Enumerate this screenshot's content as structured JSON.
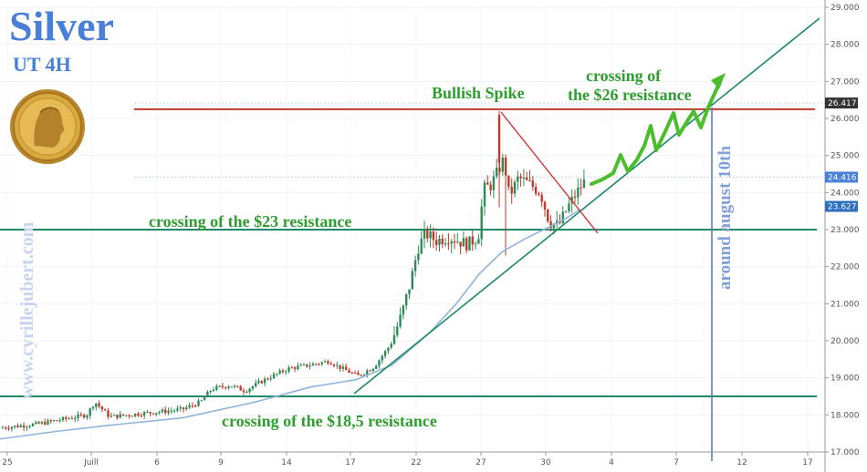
{
  "title": "Silver",
  "subtitle": "UT  4H",
  "watermark": "www.cyrillejubert.com",
  "chart_data": {
    "type": "candlestick",
    "y_ticks": [
      "17.000",
      "18.000",
      "19.000",
      "20.000",
      "21.000",
      "22.000",
      "23.000",
      "24.000",
      "25.000",
      "26.000",
      "27.000",
      "28.000",
      "29.000"
    ],
    "x_ticks": [
      "25",
      "Juill",
      "6",
      "9",
      "14",
      "17",
      "22",
      "27",
      "30",
      "4",
      "7",
      "12",
      "17"
    ],
    "ylim": [
      17,
      29
    ],
    "price_tags": [
      {
        "label": "26.417",
        "value": 26.417,
        "bg": "#333333",
        "fg": "#ffffff"
      },
      {
        "label": "24.416",
        "value": 24.416,
        "bg": "#4a7fd8",
        "fg": "#ffffff"
      },
      {
        "label": "23.627",
        "value": 23.627,
        "bg": "#2e6fc0",
        "fg": "#ffffff"
      }
    ],
    "resistances": [
      {
        "value": 26.25,
        "color": "#c0392b"
      },
      {
        "value": 23.0,
        "color": "#1e8a6a"
      },
      {
        "value": 18.5,
        "color": "#1e8a6a"
      }
    ],
    "annotations": {
      "res_23": "crossing of the $23 resistance",
      "res_185": "crossing of the $18,5  resistance",
      "spike": "Bullish Spike",
      "cross26_l1": "crossing of",
      "cross26_l2": "the $26 resistance",
      "vertical": "around august 10th"
    },
    "colors": {
      "up": "#2e8b57",
      "down": "#c0392b",
      "ma": "#8fb4dc",
      "trend": "#1e8a6a",
      "projection": "#4bbf2b",
      "vertical": "#5b7fb8"
    }
  }
}
